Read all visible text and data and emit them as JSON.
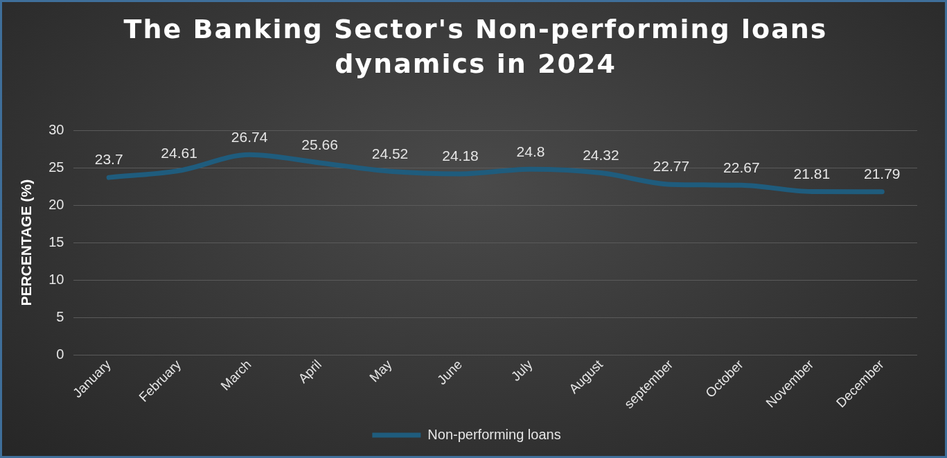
{
  "chart_data": {
    "type": "line",
    "title": "The Banking Sector's Non-performing loans dynamics in 2024",
    "ylabel": "PERCENTAGE (%)",
    "categories": [
      "January",
      "February",
      "March",
      "April",
      "May",
      "June",
      "July",
      "August",
      "september",
      "October",
      "November",
      "December"
    ],
    "series": [
      {
        "name": "Non-performing loans",
        "color": "#1f5c7d",
        "values": [
          23.7,
          24.61,
          26.74,
          25.66,
          24.52,
          24.18,
          24.8,
          24.32,
          22.77,
          22.67,
          21.81,
          21.79
        ]
      }
    ],
    "ylim": [
      0,
      30
    ],
    "yticks": [
      0,
      5,
      10,
      15,
      20,
      25,
      30
    ],
    "grid": "y",
    "legend": "bottom",
    "marker": "none",
    "line_style": "solid",
    "data_labels": true
  }
}
